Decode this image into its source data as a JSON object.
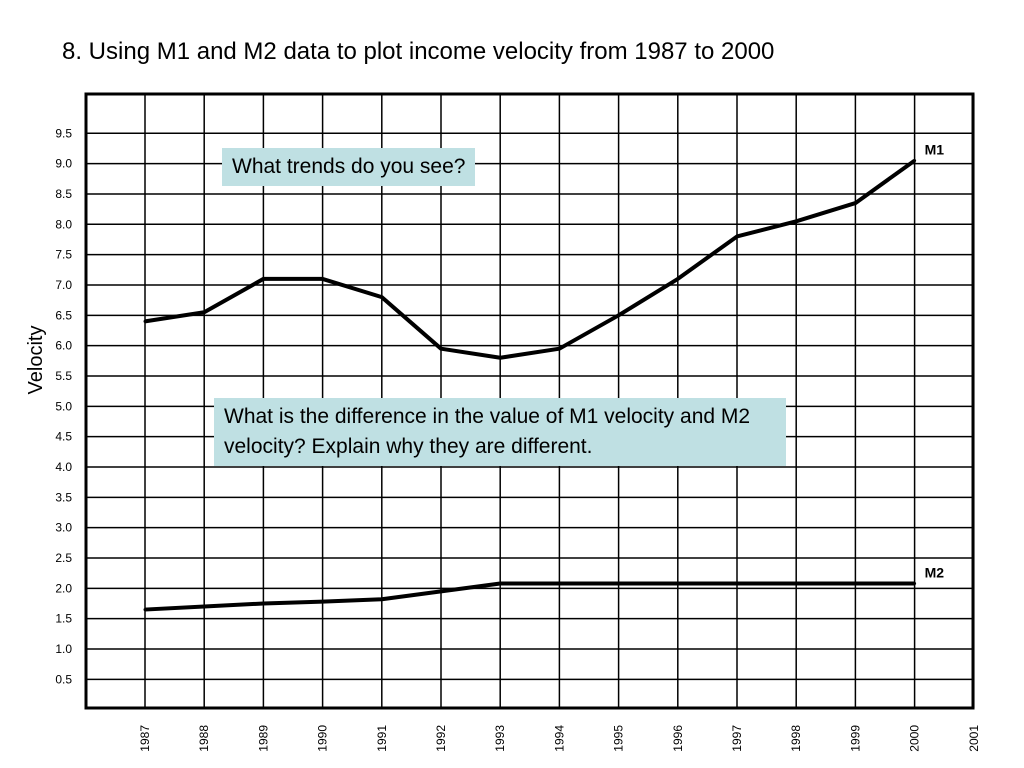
{
  "title": "8. Using M1 and M2 data to plot income velocity from 1987 to 2000",
  "callouts": {
    "trends": "What trends do you see?",
    "difference": "What is the difference in the value of M1 velocity and M2 velocity? Explain why they are different."
  },
  "chart_data": {
    "type": "line",
    "title": "8. Using M1 and M2 data to plot income velocity from 1987 to 2000",
    "xlabel": "",
    "ylabel": "Velocity",
    "x_ticks": [
      "1987",
      "1988",
      "1989",
      "1990",
      "1991",
      "1992",
      "1993",
      "1994",
      "1995",
      "1996",
      "1997",
      "1998",
      "1999",
      "2000",
      "2001"
    ],
    "y_ticks": [
      "9.5",
      "9.0",
      "8.5",
      "8.0",
      "7.5",
      "7.0",
      "6.5",
      "6.0",
      "5.5",
      "5.0",
      "4.5",
      "4.0",
      "3.5",
      "3.0",
      "2.5",
      "2.0",
      "1.5",
      "1.0",
      "0.5"
    ],
    "ylim": [
      0,
      10
    ],
    "grid": true,
    "line_color": "#000000",
    "series": [
      {
        "name": "M1",
        "x": [
          1987,
          1988,
          1989,
          1990,
          1991,
          1992,
          1993,
          1994,
          1995,
          1996,
          1997,
          1998,
          1999,
          2000
        ],
        "values": [
          6.4,
          6.55,
          7.1,
          7.1,
          6.8,
          5.95,
          5.8,
          5.95,
          6.5,
          7.1,
          7.8,
          8.05,
          8.35,
          9.05
        ]
      },
      {
        "name": "M2",
        "x": [
          1987,
          1988,
          1989,
          1990,
          1991,
          1992,
          1993,
          1994,
          1995,
          1996,
          1997,
          1998,
          1999,
          2000
        ],
        "values": [
          1.65,
          1.7,
          1.75,
          1.78,
          1.82,
          1.95,
          2.08,
          2.08,
          2.08,
          2.08,
          2.08,
          2.08,
          2.08,
          2.08
        ]
      }
    ]
  }
}
